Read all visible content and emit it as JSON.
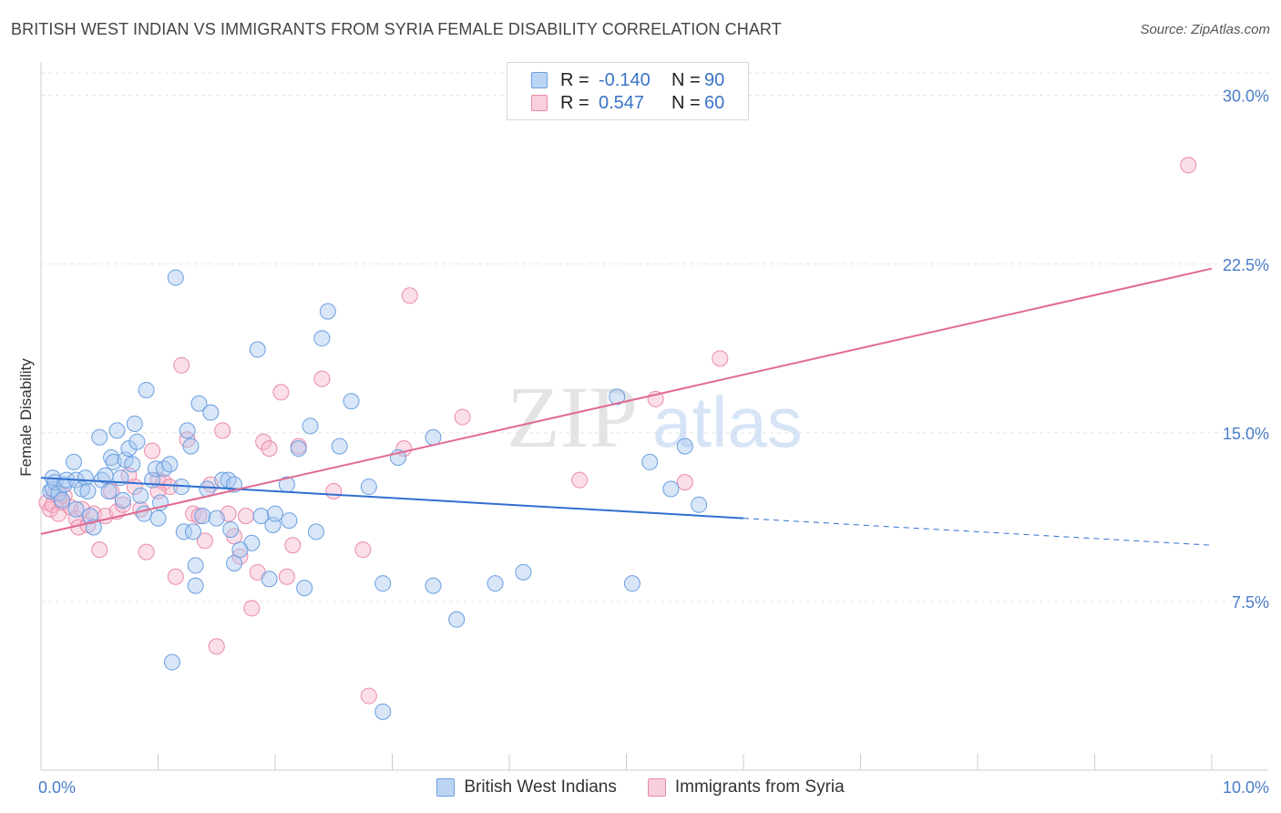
{
  "title": "BRITISH WEST INDIAN VS IMMIGRANTS FROM SYRIA FEMALE DISABILITY CORRELATION CHART",
  "source": "Source: ZipAtlas.com",
  "watermark": {
    "zip": "ZIP",
    "atlas": "atlas"
  },
  "legend": {
    "rows": [
      {
        "r_label": "R =",
        "r_value": "-0.140",
        "n_label": "N =",
        "n_value": "90"
      },
      {
        "r_label": "R =",
        "r_value": "0.547",
        "n_label": "N =",
        "n_value": "60"
      }
    ]
  },
  "colors": {
    "blue_fill": "#a9c8f0",
    "blue_stroke": "#6a9fe0",
    "blue_line": "#2f6fd0",
    "pink_fill": "#f6b9cc",
    "pink_stroke": "#ea8aa8",
    "pink_line": "#e06a92",
    "tick_text": "#4a7cc9",
    "grid": "#e3e3e3"
  },
  "chart_data": {
    "type": "scatter",
    "title": "BRITISH WEST INDIAN VS IMMIGRANTS FROM SYRIA FEMALE DISABILITY CORRELATION CHART",
    "xlabel": "",
    "ylabel": "Female Disability",
    "xlim": [
      0,
      10
    ],
    "ylim": [
      0,
      31
    ],
    "x_tick_labels": [
      "0.0%",
      "10.0%"
    ],
    "y_ticks": [
      7.5,
      15.0,
      22.5,
      30.0
    ],
    "y_tick_labels": [
      "7.5%",
      "15.0%",
      "22.5%",
      "30.0%"
    ],
    "grid": "horizontal dashed",
    "legend_position": "bottom",
    "series": [
      {
        "name": "British West Indians",
        "color": "#a9c8f0",
        "trend": {
          "x": [
            0.0,
            6.0
          ],
          "y": [
            13.0,
            11.2
          ],
          "dashed_to": [
            10.0,
            10.0
          ]
        },
        "points": [
          [
            0.08,
            12.4
          ],
          [
            0.1,
            12.5
          ],
          [
            0.1,
            13.0
          ],
          [
            0.12,
            12.8
          ],
          [
            0.15,
            12.3
          ],
          [
            0.18,
            12.0
          ],
          [
            0.2,
            12.7
          ],
          [
            0.22,
            12.9
          ],
          [
            0.28,
            13.7
          ],
          [
            0.3,
            12.9
          ],
          [
            0.3,
            11.6
          ],
          [
            0.35,
            12.5
          ],
          [
            0.38,
            13.0
          ],
          [
            0.4,
            12.4
          ],
          [
            0.42,
            11.3
          ],
          [
            0.45,
            10.8
          ],
          [
            0.5,
            14.8
          ],
          [
            0.52,
            12.9
          ],
          [
            0.55,
            13.1
          ],
          [
            0.58,
            12.4
          ],
          [
            0.6,
            13.9
          ],
          [
            0.62,
            13.7
          ],
          [
            0.65,
            15.1
          ],
          [
            0.68,
            13.0
          ],
          [
            0.72,
            13.8
          ],
          [
            0.75,
            14.3
          ],
          [
            0.78,
            13.6
          ],
          [
            0.8,
            15.4
          ],
          [
            0.82,
            14.6
          ],
          [
            0.85,
            12.2
          ],
          [
            0.88,
            11.4
          ],
          [
            0.9,
            16.9
          ],
          [
            0.95,
            12.9
          ],
          [
            0.98,
            13.4
          ],
          [
            1.0,
            11.2
          ],
          [
            1.02,
            11.9
          ],
          [
            1.05,
            13.4
          ],
          [
            1.1,
            13.6
          ],
          [
            1.12,
            4.8
          ],
          [
            1.15,
            21.9
          ],
          [
            1.2,
            12.6
          ],
          [
            1.22,
            10.6
          ],
          [
            1.25,
            15.1
          ],
          [
            1.28,
            14.4
          ],
          [
            1.3,
            10.6
          ],
          [
            1.32,
            9.1
          ],
          [
            1.32,
            8.2
          ],
          [
            1.35,
            16.3
          ],
          [
            1.38,
            11.3
          ],
          [
            1.42,
            12.5
          ],
          [
            1.45,
            15.9
          ],
          [
            1.5,
            11.2
          ],
          [
            1.55,
            12.9
          ],
          [
            1.6,
            12.9
          ],
          [
            1.62,
            10.7
          ],
          [
            1.65,
            9.2
          ],
          [
            1.65,
            12.7
          ],
          [
            1.85,
            18.7
          ],
          [
            1.88,
            11.3
          ],
          [
            1.95,
            8.5
          ],
          [
            1.98,
            10.9
          ],
          [
            2.0,
            11.4
          ],
          [
            2.1,
            12.7
          ],
          [
            2.12,
            11.1
          ],
          [
            2.2,
            14.3
          ],
          [
            2.25,
            8.1
          ],
          [
            2.3,
            15.3
          ],
          [
            2.35,
            10.6
          ],
          [
            2.4,
            19.2
          ],
          [
            2.45,
            20.4
          ],
          [
            2.55,
            14.4
          ],
          [
            2.65,
            16.4
          ],
          [
            2.92,
            8.3
          ],
          [
            2.92,
            2.6
          ],
          [
            3.05,
            13.9
          ],
          [
            3.35,
            14.8
          ],
          [
            3.35,
            8.2
          ],
          [
            3.55,
            6.7
          ],
          [
            3.88,
            8.3
          ],
          [
            4.12,
            8.8
          ],
          [
            4.92,
            16.6
          ],
          [
            5.05,
            8.3
          ],
          [
            5.2,
            13.7
          ],
          [
            5.38,
            12.5
          ],
          [
            5.5,
            14.4
          ],
          [
            5.62,
            11.8
          ],
          [
            1.8,
            10.1
          ],
          [
            0.7,
            12.0
          ],
          [
            1.7,
            9.8
          ],
          [
            2.8,
            12.6
          ]
        ]
      },
      {
        "name": "Immigrants from Syria",
        "color": "#f6b9cc",
        "trend": {
          "x": [
            0.0,
            10.0
          ],
          "y": [
            10.5,
            22.3
          ]
        },
        "points": [
          [
            0.05,
            11.9
          ],
          [
            0.08,
            11.6
          ],
          [
            0.1,
            11.8
          ],
          [
            0.12,
            12.3
          ],
          [
            0.15,
            11.4
          ],
          [
            0.18,
            11.9
          ],
          [
            0.2,
            12.2
          ],
          [
            0.25,
            11.7
          ],
          [
            0.3,
            11.2
          ],
          [
            0.32,
            10.8
          ],
          [
            0.4,
            10.9
          ],
          [
            0.45,
            11.4
          ],
          [
            0.5,
            9.8
          ],
          [
            0.55,
            11.3
          ],
          [
            0.6,
            12.4
          ],
          [
            0.65,
            11.5
          ],
          [
            0.7,
            11.8
          ],
          [
            0.75,
            13.1
          ],
          [
            0.8,
            12.6
          ],
          [
            0.85,
            11.6
          ],
          [
            0.9,
            9.7
          ],
          [
            0.95,
            14.2
          ],
          [
            1.0,
            12.9
          ],
          [
            1.05,
            12.8
          ],
          [
            1.1,
            12.6
          ],
          [
            1.15,
            8.6
          ],
          [
            1.2,
            18.0
          ],
          [
            1.25,
            14.7
          ],
          [
            1.3,
            11.4
          ],
          [
            1.35,
            11.3
          ],
          [
            1.4,
            10.2
          ],
          [
            1.45,
            12.7
          ],
          [
            1.5,
            5.5
          ],
          [
            1.55,
            15.1
          ],
          [
            1.6,
            11.4
          ],
          [
            1.65,
            10.4
          ],
          [
            1.7,
            9.5
          ],
          [
            1.75,
            11.3
          ],
          [
            1.8,
            7.2
          ],
          [
            1.85,
            8.8
          ],
          [
            1.9,
            14.6
          ],
          [
            1.95,
            14.3
          ],
          [
            2.05,
            16.8
          ],
          [
            2.1,
            8.6
          ],
          [
            2.15,
            10.0
          ],
          [
            2.2,
            14.4
          ],
          [
            2.4,
            17.4
          ],
          [
            2.5,
            12.4
          ],
          [
            2.75,
            9.8
          ],
          [
            2.8,
            3.3
          ],
          [
            3.1,
            14.3
          ],
          [
            3.15,
            21.1
          ],
          [
            3.6,
            15.7
          ],
          [
            4.6,
            12.9
          ],
          [
            5.25,
            16.5
          ],
          [
            5.5,
            12.8
          ],
          [
            5.8,
            18.3
          ],
          [
            9.8,
            26.9
          ],
          [
            0.35,
            11.6
          ],
          [
            1.0,
            12.4
          ]
        ]
      }
    ]
  },
  "bottom_legend": [
    {
      "label": "British West Indians"
    },
    {
      "label": "Immigrants from Syria"
    }
  ]
}
